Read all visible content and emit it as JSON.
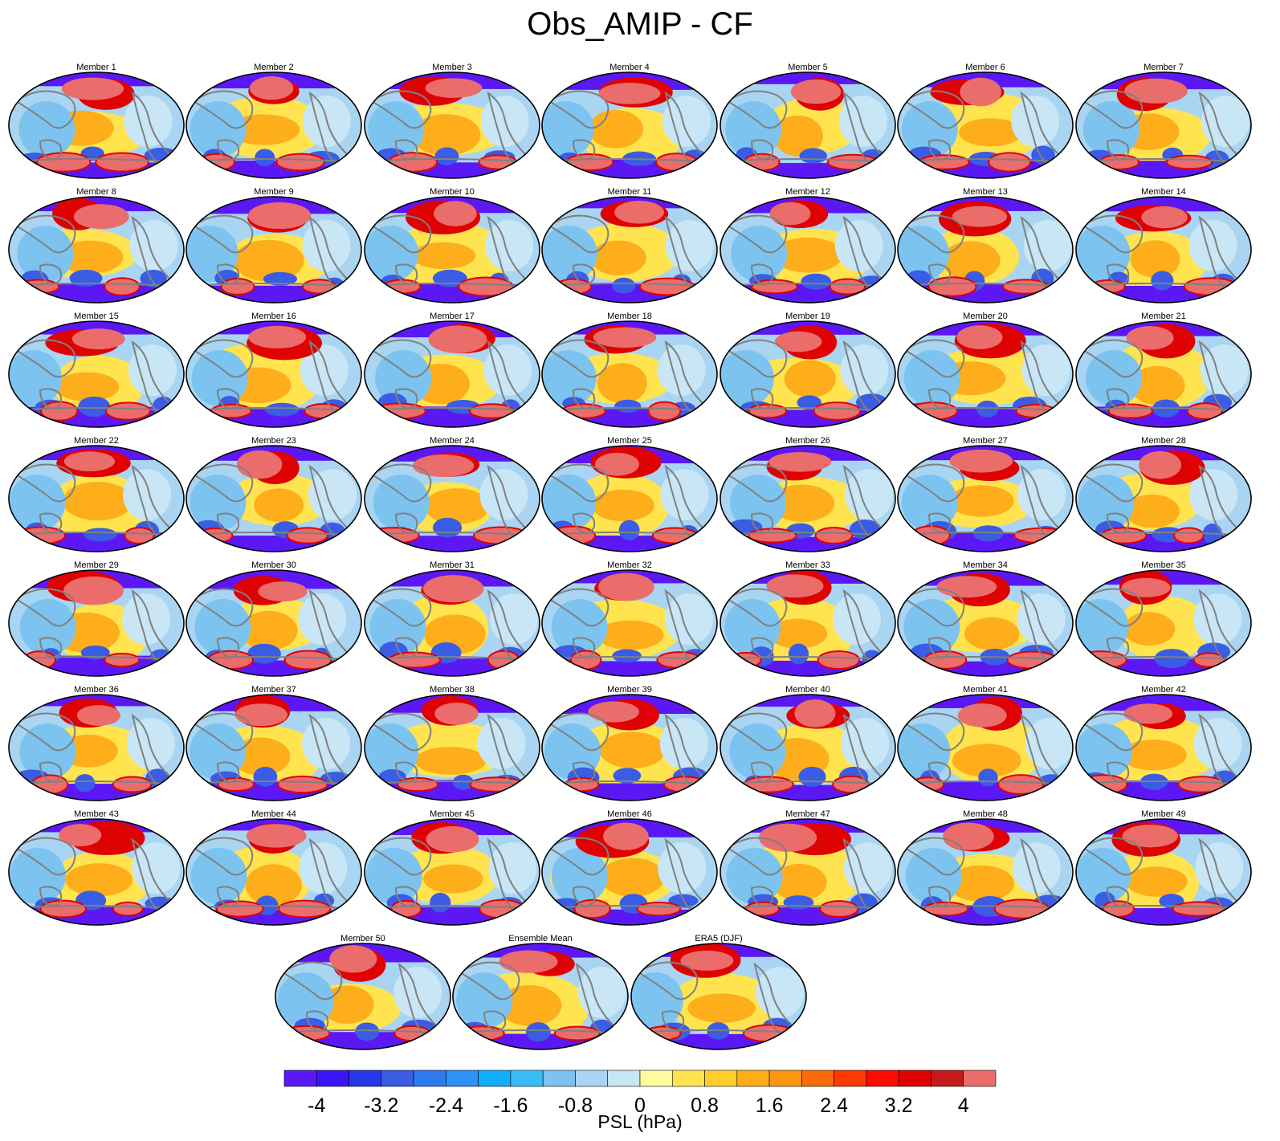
{
  "chart_data": {
    "type": "heatmap",
    "title": "Obs_AMIP - CF",
    "projection": "Mollweide global maps",
    "variable": "PSL",
    "colorbar": {
      "label": "PSL (hPa)",
      "min": -4,
      "max": 4,
      "step": 0.4,
      "tick_values": [
        -4,
        -3.2,
        -2.4,
        -1.6,
        -0.8,
        0,
        0.8,
        1.6,
        2.4,
        3.2,
        4
      ],
      "tick_labels": [
        "-4",
        "-3.2",
        "-2.4",
        "-1.6",
        "-0.8",
        "0",
        "0.8",
        "1.6",
        "2.4",
        "3.2",
        "4"
      ],
      "colors": [
        "#5b18f5",
        "#3c14f8",
        "#2838e6",
        "#3b5ce4",
        "#2e7bf0",
        "#2c92f7",
        "#12aefb",
        "#38bdf8",
        "#7cc3f0",
        "#a9d5f2",
        "#c8e6f5",
        "#fffb9e",
        "#ffe44f",
        "#ffce2d",
        "#fdae1a",
        "#fb9712",
        "#fa6b0c",
        "#ff3a00",
        "#ff0a00",
        "#de0202",
        "#c41a19",
        "#ea6d6b"
      ]
    },
    "panels": [
      "Member 1",
      "Member 2",
      "Member 3",
      "Member 4",
      "Member 5",
      "Member 6",
      "Member 7",
      "Member 8",
      "Member 9",
      "Member 10",
      "Member 11",
      "Member 12",
      "Member 13",
      "Member 14",
      "Member 15",
      "Member 16",
      "Member 17",
      "Member 18",
      "Member 19",
      "Member 20",
      "Member 21",
      "Member 22",
      "Member 23",
      "Member 24",
      "Member 25",
      "Member 26",
      "Member 27",
      "Member 28",
      "Member 29",
      "Member 30",
      "Member 31",
      "Member 32",
      "Member 33",
      "Member 34",
      "Member 35",
      "Member 36",
      "Member 37",
      "Member 38",
      "Member 39",
      "Member 40",
      "Member 41",
      "Member 42",
      "Member 43",
      "Member 44",
      "Member 45",
      "Member 46",
      "Member 47",
      "Member 48",
      "Member 49",
      "Member 50",
      "Ensemble Mean",
      "ERA5 (DJF)"
    ]
  },
  "colors": {
    "ocean_light": "#a9d5f2",
    "coastline": "#808080",
    "polar_low": "#5b18f5",
    "high_anomaly": "#ea6d6b",
    "warm": "#ffce2d"
  }
}
